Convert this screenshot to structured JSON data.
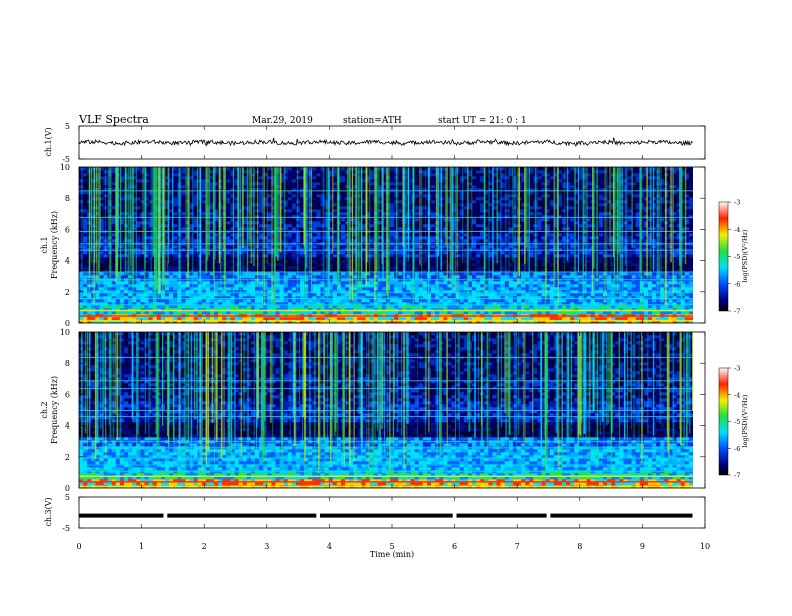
{
  "header": {
    "title": "VLF  Spectra",
    "date": "Mar.29, 2019",
    "station": "station=ATH",
    "start": "start  UT  =    21: 0   : 1"
  },
  "chart_data": [
    {
      "type": "line",
      "panel": "ch1-waveform",
      "ylabel": "ch.1(V)",
      "ylim": [
        -5,
        5
      ],
      "yticks": [
        "5",
        "-5"
      ],
      "xlim": [
        0,
        10
      ],
      "color": "#000000",
      "description_values": "noisy waveform centered near 0 V, amplitude about ±1 V"
    },
    {
      "type": "heatmap",
      "panel": "ch1-spectrogram",
      "ylabel_line1": "ch.1",
      "ylabel_line2": "Frequency  (kHz)",
      "ylim": [
        0,
        10
      ],
      "yticks": [
        "0",
        "2",
        "4",
        "6",
        "8",
        "10"
      ],
      "xlim": [
        0,
        10
      ],
      "colorbar": {
        "label": "log(PSD)(V²/Hz)",
        "range": [
          -7,
          -3
        ],
        "ticks": [
          "-3",
          "-4",
          "-5",
          "-6",
          "-7"
        ]
      }
    },
    {
      "type": "heatmap",
      "panel": "ch2-spectrogram",
      "ylabel_line1": "ch.2",
      "ylabel_line2": "Frequency  (kHz)",
      "ylim": [
        0,
        10
      ],
      "yticks": [
        "0",
        "2",
        "4",
        "6",
        "8",
        "10"
      ],
      "xlim": [
        0,
        10
      ],
      "colorbar": {
        "label": "log(PSD)(V²/Hz)",
        "range": [
          -7,
          -3
        ],
        "ticks": [
          "-3",
          "-4",
          "-5",
          "-6",
          "-7"
        ]
      }
    },
    {
      "type": "line",
      "panel": "ch3-signal",
      "ylabel": "ch.3(V)",
      "ylim": [
        -5,
        5
      ],
      "yticks": [
        "5",
        "-5"
      ],
      "xlim": [
        0,
        10
      ],
      "color": "#000000",
      "level": -1,
      "gaps": [
        1.38,
        3.82,
        6.0,
        7.5
      ]
    }
  ],
  "xaxis": {
    "label": "Time  (min)",
    "ticks": [
      "0",
      "1",
      "2",
      "3",
      "4",
      "5",
      "6",
      "7",
      "8",
      "9",
      "10"
    ]
  }
}
